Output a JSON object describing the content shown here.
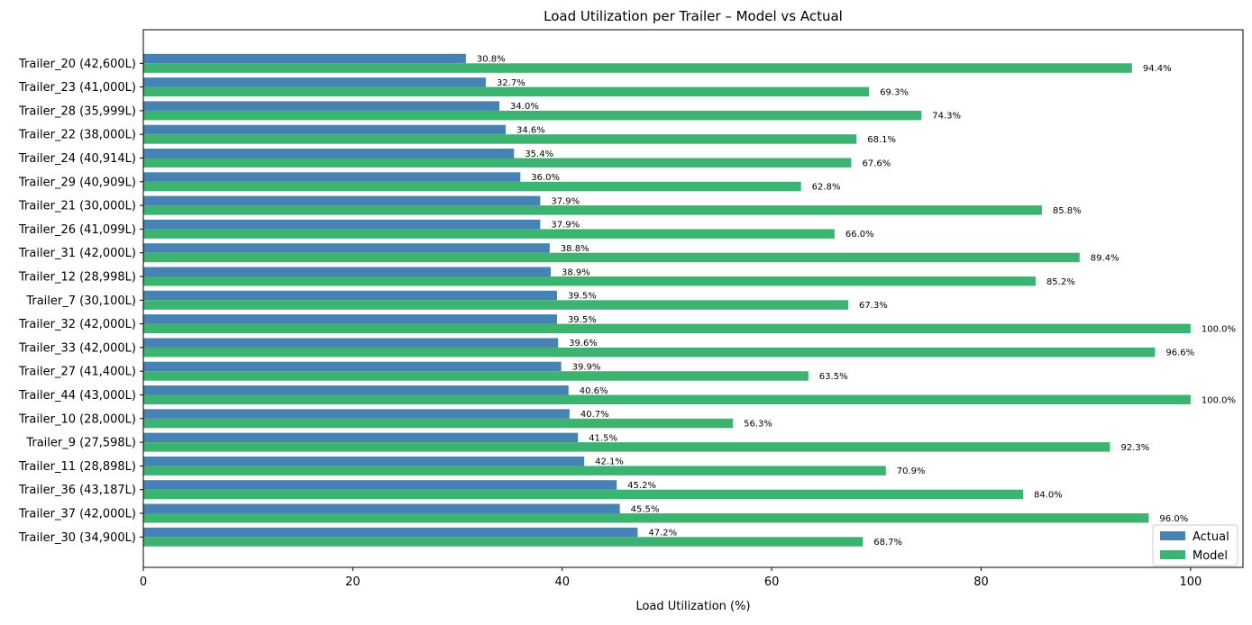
{
  "chart_data": {
    "type": "bar",
    "orientation": "horizontal",
    "title": "Load Utilization per Trailer – Model vs Actual",
    "xlabel": "Load Utilization (%)",
    "ylabel": "",
    "xlim": [
      0,
      105
    ],
    "xticks": [
      0,
      20,
      40,
      60,
      80,
      100
    ],
    "grid": false,
    "legend": "lower right",
    "categories": [
      "Trailer_20 (42,600L)",
      "Trailer_23 (41,000L)",
      "Trailer_28 (35,999L)",
      "Trailer_22 (38,000L)",
      "Trailer_24 (40,914L)",
      "Trailer_29 (40,909L)",
      "Trailer_21 (30,000L)",
      "Trailer_26 (41,099L)",
      "Trailer_31 (42,000L)",
      "Trailer_12 (28,998L)",
      "Trailer_7 (30,100L)",
      "Trailer_32 (42,000L)",
      "Trailer_33 (42,000L)",
      "Trailer_27 (41,400L)",
      "Trailer_44 (43,000L)",
      "Trailer_10 (28,000L)",
      "Trailer_9 (27,598L)",
      "Trailer_11 (28,898L)",
      "Trailer_36 (43,187L)",
      "Trailer_37 (42,000L)",
      "Trailer_30 (34,900L)"
    ],
    "series": [
      {
        "name": "Actual",
        "color": "#4682b4",
        "values": [
          30.8,
          32.7,
          34.0,
          34.6,
          35.4,
          36.0,
          37.9,
          37.9,
          38.8,
          38.9,
          39.5,
          39.5,
          39.6,
          39.9,
          40.6,
          40.7,
          41.5,
          42.1,
          45.2,
          45.5,
          47.2
        ],
        "labels": [
          "30.8%",
          "32.7%",
          "34.0%",
          "34.6%",
          "35.4%",
          "36.0%",
          "37.9%",
          "37.9%",
          "38.8%",
          "38.9%",
          "39.5%",
          "39.5%",
          "39.6%",
          "39.9%",
          "40.6%",
          "40.7%",
          "41.5%",
          "42.1%",
          "45.2%",
          "45.5%",
          "47.2%"
        ]
      },
      {
        "name": "Model",
        "color": "#3cb371",
        "values": [
          94.4,
          69.3,
          74.3,
          68.1,
          67.6,
          62.8,
          85.8,
          66.0,
          89.4,
          85.2,
          67.3,
          100.0,
          96.6,
          63.5,
          100.0,
          56.3,
          92.3,
          70.9,
          84.0,
          96.0,
          68.7
        ],
        "labels": [
          "94.4%",
          "69.3%",
          "74.3%",
          "68.1%",
          "67.6%",
          "62.8%",
          "85.8%",
          "66.0%",
          "89.4%",
          "85.2%",
          "67.3%",
          "100.0%",
          "96.6%",
          "63.5%",
          "100.0%",
          "56.3%",
          "92.3%",
          "70.9%",
          "84.0%",
          "96.0%",
          "68.7%"
        ]
      }
    ]
  }
}
